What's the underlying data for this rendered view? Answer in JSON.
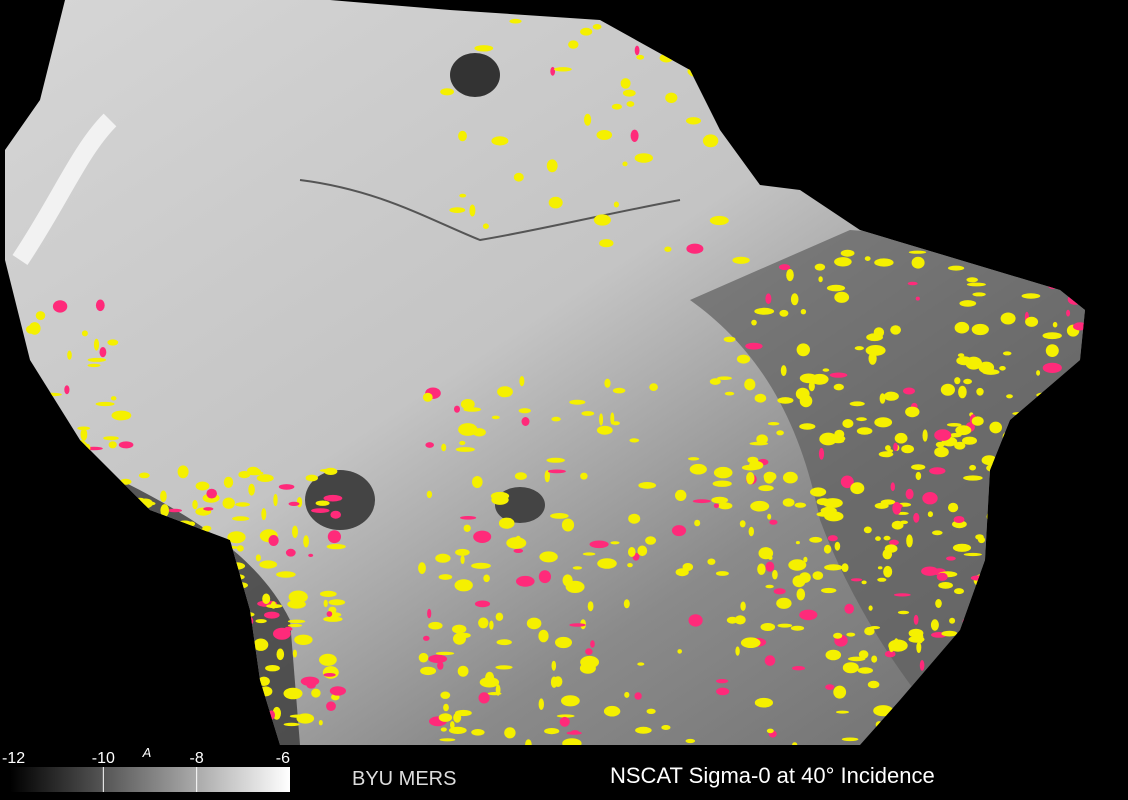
{
  "colorbar": {
    "range": [
      -12,
      -6
    ],
    "ticks": [
      -12,
      -10,
      -8,
      -6
    ],
    "marker": "A"
  },
  "credit": "BYU MERS",
  "title": "NSCAT Sigma-0 at 40° Incidence"
}
